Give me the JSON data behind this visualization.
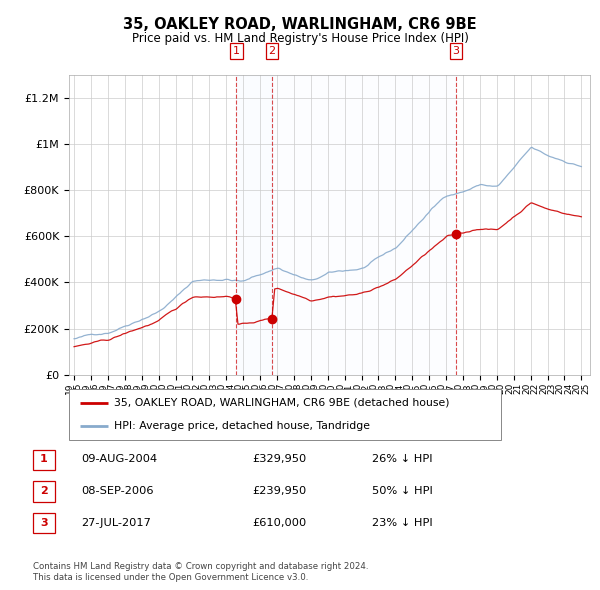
{
  "title": "35, OAKLEY ROAD, WARLINGHAM, CR6 9BE",
  "subtitle": "Price paid vs. HM Land Registry's House Price Index (HPI)",
  "legend_line1": "35, OAKLEY ROAD, WARLINGHAM, CR6 9BE (detached house)",
  "legend_line2": "HPI: Average price, detached house, Tandridge",
  "footer1": "Contains HM Land Registry data © Crown copyright and database right 2024.",
  "footer2": "This data is licensed under the Open Government Licence v3.0.",
  "table": [
    {
      "num": "1",
      "date": "09-AUG-2004",
      "price": "£329,950",
      "pct": "26% ↓ HPI"
    },
    {
      "num": "2",
      "date": "08-SEP-2006",
      "price": "£239,950",
      "pct": "50% ↓ HPI"
    },
    {
      "num": "3",
      "date": "27-JUL-2017",
      "price": "£610,000",
      "pct": "23% ↓ HPI"
    }
  ],
  "sale_years": [
    2004.6,
    2006.7,
    2017.58
  ],
  "sale_prices": [
    329950,
    239950,
    610000
  ],
  "ylim": [
    0,
    1300000
  ],
  "yticks": [
    0,
    200000,
    400000,
    600000,
    800000,
    1000000,
    1200000
  ],
  "ytick_labels": [
    "£0",
    "£200K",
    "£400K",
    "£600K",
    "£800K",
    "£1M",
    "£1.2M"
  ],
  "red_color": "#cc0000",
  "blue_color": "#88aacc",
  "shade_color": "#ddeeff",
  "grid_color": "#cccccc"
}
